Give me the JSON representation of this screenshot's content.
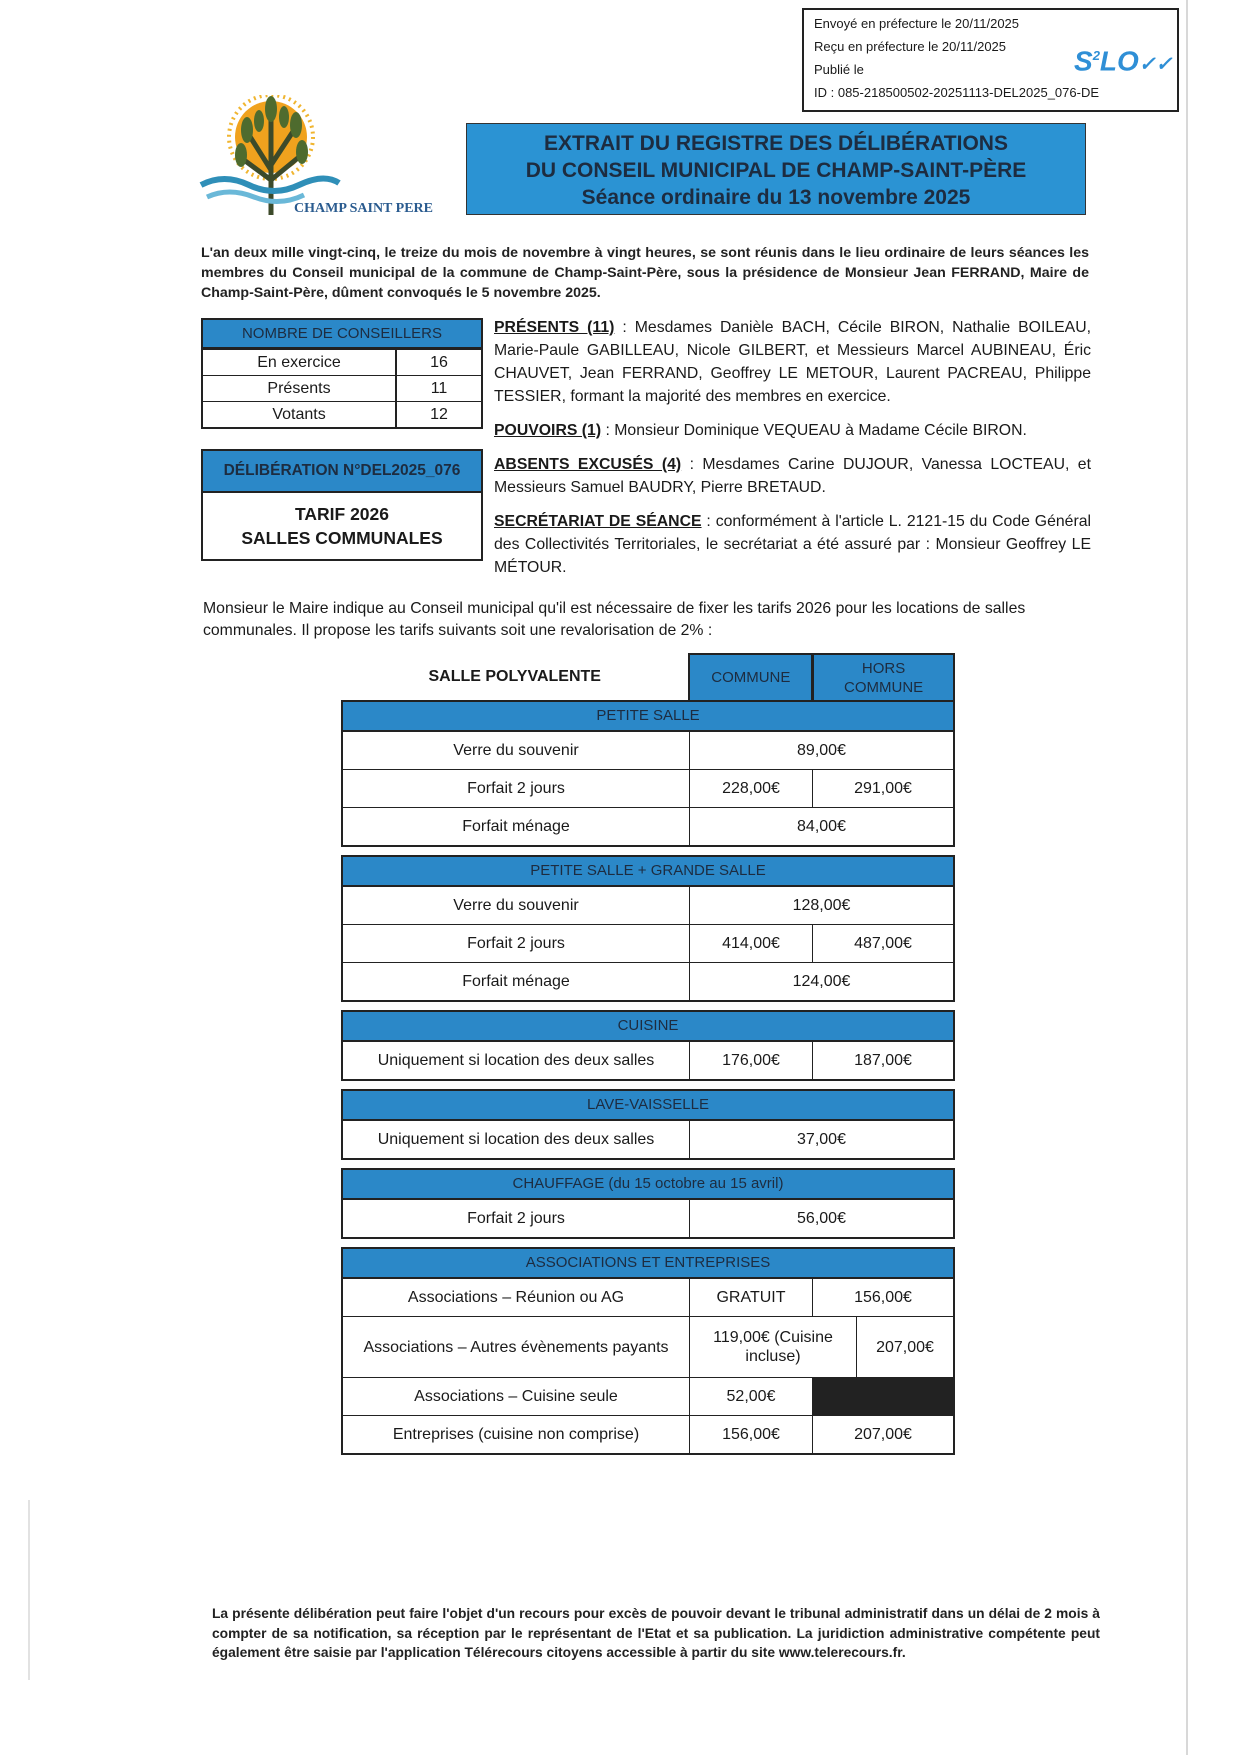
{
  "stamp": {
    "sent": "Envoyé en préfecture le 20/11/2025",
    "received": "Reçu en préfecture le 20/11/2025",
    "published": "Publié le",
    "id": "ID : 085-218500502-20251113-DEL2025_076-DE",
    "logo": "S²LO"
  },
  "logo": {
    "text": "CHAMP SAINT PERE"
  },
  "banner": {
    "line1": "EXTRAIT DU REGISTRE DES DÉLIBÉRATIONS",
    "line2": "DU CONSEIL MUNICIPAL DE CHAMP-SAINT-PÈRE",
    "line3": "Séance ordinaire du 13 novembre 2025"
  },
  "intro": "L'an deux mille vingt-cinq, le treize du mois de novembre à vingt heures, se sont réunis dans le lieu ordinaire de leurs séances les membres du Conseil municipal de la commune de Champ-Saint-Père, sous la présidence de Monsieur Jean FERRAND, Maire de Champ-Saint-Père, dûment convoqués le 5 novembre 2025.",
  "conseillers": {
    "title": "NOMBRE DE CONSEILLERS",
    "rows": [
      {
        "label": "En exercice",
        "value": "16"
      },
      {
        "label": "Présents",
        "value": "11"
      },
      {
        "label": "Votants",
        "value": "12"
      }
    ]
  },
  "deliberation": {
    "number": "DÉLIBÉRATION N°DEL2025_076",
    "title1": "TARIF 2026",
    "title2": "SALLES COMMUNALES"
  },
  "attendance": {
    "presents_key": "PRÉSENTS (11)",
    "presents_text": " : Mesdames Danièle BACH, Cécile BIRON, Nathalie BOILEAU, Marie-Paule GABILLEAU, Nicole GILBERT, et Messieurs Marcel AUBINEAU, Éric CHAUVET, Jean FERRAND, Geoffrey LE METOUR, Laurent PACREAU, Philippe TESSIER, formant la majorité des membres en exercice.",
    "pouvoirs_key": "POUVOIRS (1)",
    "pouvoirs_text": " : Monsieur Dominique VEQUEAU à Madame Cécile BIRON.",
    "absents_key": "ABSENTS EXCUSÉS (4)",
    "absents_text": " : Mesdames Carine DUJOUR, Vanessa LOCTEAU, et Messieurs Samuel BAUDRY, Pierre BRETAUD.",
    "secretariat_key": "SECRÉTARIAT DE SÉANCE",
    "secretariat_text": " : conformément à l'article L. 2121-15 du Code Général des Collectivités Territoriales, le secrétariat a été assuré par : Monsieur Geoffrey LE MÉTOUR."
  },
  "proposal": "Monsieur le Maire indique au Conseil municipal qu'il est nécessaire de fixer les tarifs 2026 pour les locations de salles communales. Il propose les tarifs suivants soit une revalorisation de 2% :",
  "tariffs": {
    "title": "SALLE POLYVALENTE",
    "col_commune": "COMMUNE",
    "col_hors": "HORS COMMUNE",
    "sections": [
      {
        "title": "PETITE SALLE",
        "rows": [
          {
            "label": "Verre du souvenir",
            "value": "89,00€"
          },
          {
            "label": "Forfait 2 jours",
            "commune": "228,00€",
            "hors": "291,00€"
          },
          {
            "label": "Forfait ménage",
            "value": "84,00€"
          }
        ]
      },
      {
        "title": "PETITE SALLE + GRANDE SALLE",
        "rows": [
          {
            "label": "Verre du souvenir",
            "value": "128,00€"
          },
          {
            "label": "Forfait 2 jours",
            "commune": "414,00€",
            "hors": "487,00€"
          },
          {
            "label": "Forfait ménage",
            "value": "124,00€"
          }
        ]
      },
      {
        "title": "CUISINE",
        "rows": [
          {
            "label": "Uniquement si location des deux salles",
            "commune": "176,00€",
            "hors": "187,00€"
          }
        ]
      },
      {
        "title": "LAVE-VAISSELLE",
        "rows": [
          {
            "label": "Uniquement si location des deux salles",
            "value": "37,00€"
          }
        ]
      },
      {
        "title": "CHAUFFAGE (du 15 octobre au 15 avril)",
        "rows": [
          {
            "label": "Forfait 2 jours",
            "value": "56,00€"
          }
        ]
      },
      {
        "title": "ASSOCIATIONS ET ENTREPRISES",
        "rows": [
          {
            "label": "Associations – Réunion ou AG",
            "commune": "GRATUIT",
            "hors": "156,00€"
          },
          {
            "label": "Associations – Autres évènements payants",
            "commune": "119,00€ (Cuisine incluse)",
            "hors": "207,00€"
          },
          {
            "label": "Associations – Cuisine seule",
            "commune": "52,00€",
            "hors": ""
          },
          {
            "label": "Entreprises (cuisine non comprise)",
            "commune": "156,00€",
            "hors": "207,00€"
          }
        ]
      }
    ]
  },
  "footer": {
    "text": "La présente délibération peut faire l'objet d'un recours pour excès de pouvoir devant le tribunal administratif dans un délai de 2 mois à compter de sa notification, sa réception par le représentant de l'Etat et sa publication. La juridiction administrative compétente peut également être saisie par l'application Télérecours citoyens accessible à partir du site ",
    "link": "www.telerecours.fr",
    "end": "."
  },
  "colors": {
    "header_blue": "#2b88c8",
    "banner_blue": "#2b93d3",
    "stamp_logo": "#2f8fd6"
  }
}
